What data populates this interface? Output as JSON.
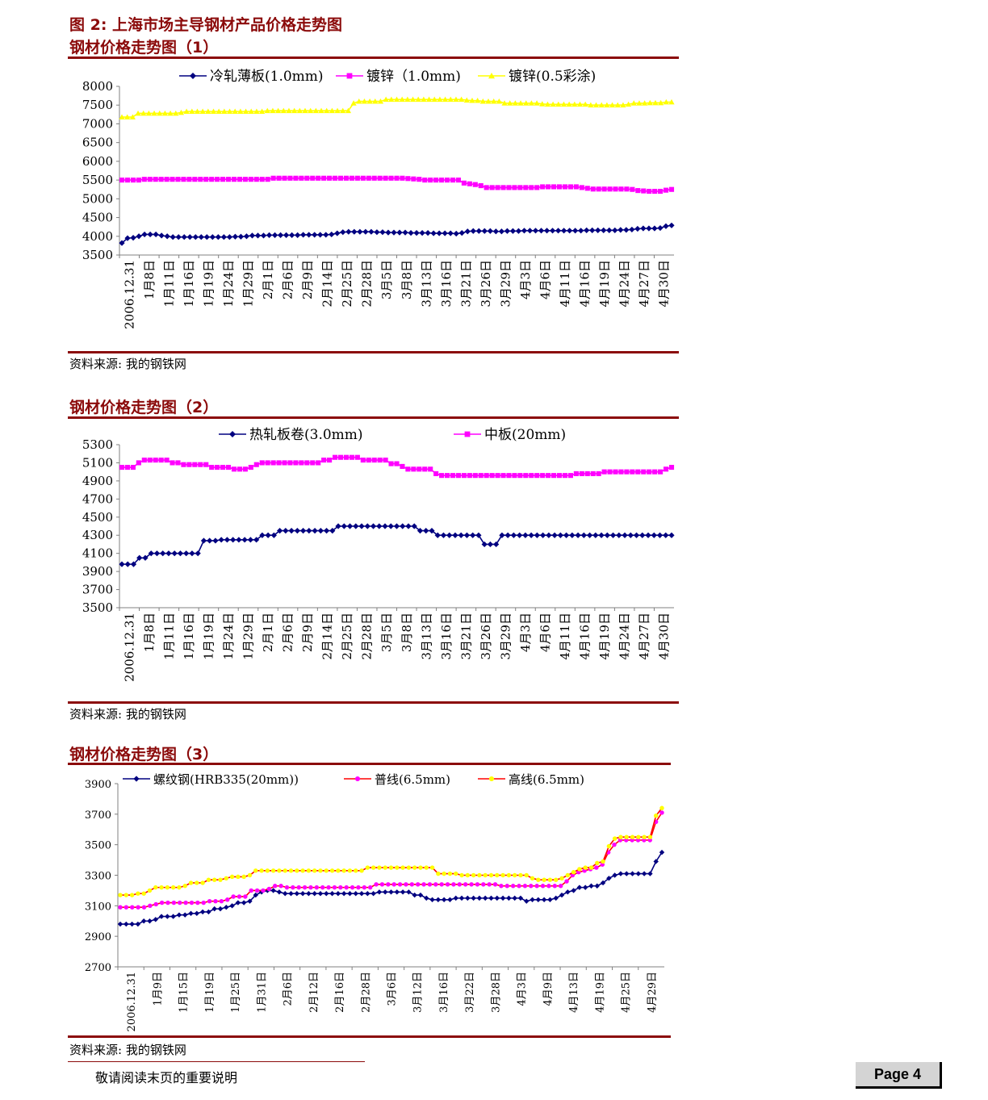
{
  "header": {
    "figure_title": "图 2: 上海市场主导钢材产品价格走势图",
    "chart1_title": "钢材价格走势图（1）",
    "chart2_title": "钢材价格走势图（2）",
    "chart3_title": "钢材价格走势图（3）"
  },
  "sources": {
    "s1": "资料来源: 我的钢铁网",
    "s2": "资料来源: 我的钢铁网",
    "s3": "资料来源: 我的钢铁网"
  },
  "footer": {
    "note": "敬请阅读末页的重要说明",
    "page": "Page 4"
  },
  "colors": {
    "navy": "#000080",
    "magenta": "#ff00ff",
    "yellow": "#ffff00",
    "red": "#ff0000",
    "rule": "#8b0a0a"
  },
  "chart_data": [
    {
      "type": "line",
      "ylim": [
        3500,
        8000
      ],
      "yticks": [
        3500,
        4000,
        4500,
        5000,
        5500,
        6000,
        6500,
        7000,
        7500,
        8000
      ],
      "xtick_labels": [
        "2006.12.31",
        "1月8日",
        "1月11日",
        "1月16日",
        "1月19日",
        "1月24日",
        "1月29日",
        "2月1日",
        "2月6日",
        "2月9日",
        "2月14日",
        "2月25日",
        "2月28日",
        "3月5日",
        "3月8日",
        "3月13日",
        "3月16日",
        "3月21日",
        "3月26日",
        "3月29日",
        "4月3日",
        "4月6日",
        "4月11日",
        "4月16日",
        "4月19日",
        "4月24日",
        "4月27日",
        "4月30日"
      ],
      "legend_position": "top",
      "series": [
        {
          "name": "冷轧薄板(1.0mm)",
          "marker": "diamond",
          "color": "#000080",
          "values": [
            3820,
            3950,
            3960,
            4000,
            4050,
            4050,
            4050,
            4020,
            4000,
            3980,
            3980,
            3980,
            3980,
            3980,
            3980,
            3980,
            3980,
            3980,
            3980,
            3980,
            3990,
            3990,
            4000,
            4020,
            4020,
            4020,
            4030,
            4030,
            4030,
            4030,
            4030,
            4030,
            4040,
            4040,
            4040,
            4040,
            4040,
            4050,
            4080,
            4110,
            4120,
            4120,
            4120,
            4120,
            4120,
            4110,
            4110,
            4100,
            4100,
            4100,
            4100,
            4090,
            4090,
            4090,
            4090,
            4080,
            4080,
            4080,
            4080,
            4070,
            4090,
            4130,
            4140,
            4140,
            4140,
            4140,
            4130,
            4130,
            4140,
            4140,
            4140,
            4150,
            4150,
            4150,
            4150,
            4150,
            4150,
            4150,
            4150,
            4150,
            4150,
            4150,
            4160,
            4160,
            4160,
            4160,
            4160,
            4160,
            4170,
            4170,
            4180,
            4200,
            4210,
            4210,
            4210,
            4220,
            4270,
            4290
          ]
        },
        {
          "name": "镀锌（1.0mm)",
          "marker": "square",
          "color": "#ff00ff",
          "values": [
            5500,
            5500,
            5500,
            5500,
            5520,
            5520,
            5520,
            5520,
            5520,
            5520,
            5520,
            5520,
            5520,
            5520,
            5520,
            5520,
            5520,
            5520,
            5520,
            5520,
            5520,
            5520,
            5520,
            5520,
            5520,
            5520,
            5520,
            5550,
            5550,
            5550,
            5550,
            5550,
            5550,
            5550,
            5550,
            5550,
            5550,
            5550,
            5550,
            5550,
            5550,
            5550,
            5550,
            5550,
            5550,
            5550,
            5550,
            5550,
            5550,
            5550,
            5550,
            5540,
            5530,
            5520,
            5500,
            5500,
            5500,
            5500,
            5500,
            5500,
            5500,
            5420,
            5400,
            5380,
            5350,
            5300,
            5300,
            5300,
            5300,
            5300,
            5300,
            5300,
            5300,
            5300,
            5300,
            5320,
            5320,
            5320,
            5320,
            5320,
            5320,
            5320,
            5300,
            5280,
            5260,
            5260,
            5260,
            5260,
            5260,
            5260,
            5260,
            5250,
            5220,
            5210,
            5200,
            5200,
            5200,
            5230,
            5250
          ]
        },
        {
          "name": "镀锌(0.5彩涂)",
          "marker": "triangle",
          "color": "#ffff00",
          "values": [
            7180,
            7180,
            7180,
            7280,
            7280,
            7280,
            7280,
            7280,
            7280,
            7280,
            7280,
            7300,
            7330,
            7330,
            7330,
            7330,
            7330,
            7330,
            7330,
            7330,
            7330,
            7330,
            7330,
            7330,
            7330,
            7330,
            7330,
            7350,
            7350,
            7350,
            7350,
            7350,
            7350,
            7350,
            7350,
            7350,
            7350,
            7350,
            7350,
            7350,
            7350,
            7350,
            7350,
            7550,
            7600,
            7600,
            7600,
            7600,
            7600,
            7650,
            7650,
            7650,
            7650,
            7650,
            7650,
            7650,
            7650,
            7650,
            7650,
            7650,
            7650,
            7650,
            7650,
            7650,
            7630,
            7620,
            7620,
            7600,
            7600,
            7600,
            7600,
            7550,
            7550,
            7550,
            7550,
            7550,
            7550,
            7550,
            7530,
            7520,
            7520,
            7520,
            7520,
            7520,
            7520,
            7520,
            7520,
            7500,
            7500,
            7500,
            7500,
            7500,
            7500,
            7500,
            7520,
            7550,
            7550,
            7550,
            7560,
            7560,
            7560,
            7580,
            7580
          ]
        }
      ]
    },
    {
      "type": "line",
      "ylim": [
        3500,
        5300
      ],
      "yticks": [
        3500,
        3700,
        3900,
        4100,
        4300,
        4500,
        4700,
        4900,
        5100,
        5300
      ],
      "xtick_labels": [
        "2006.12.31",
        "1月8日",
        "1月11日",
        "1月16日",
        "1月19日",
        "1月24日",
        "1月29日",
        "2月1日",
        "2月6日",
        "2月9日",
        "2月14日",
        "2月25日",
        "2月28日",
        "3月5日",
        "3月8日",
        "3月13日",
        "3月16日",
        "3月21日",
        "3月26日",
        "3月29日",
        "4月3日",
        "4月6日",
        "4月11日",
        "4月16日",
        "4月19日",
        "4月24日",
        "4月27日",
        "4月30日"
      ],
      "legend_position": "top",
      "series": [
        {
          "name": "热轧板卷(3.0mm)",
          "marker": "diamond",
          "color": "#000080",
          "values": [
            3980,
            3980,
            3980,
            4050,
            4050,
            4100,
            4100,
            4100,
            4100,
            4100,
            4100,
            4100,
            4100,
            4100,
            4240,
            4240,
            4240,
            4250,
            4250,
            4250,
            4250,
            4250,
            4250,
            4250,
            4300,
            4300,
            4300,
            4350,
            4350,
            4350,
            4350,
            4350,
            4350,
            4350,
            4350,
            4350,
            4350,
            4400,
            4400,
            4400,
            4400,
            4400,
            4400,
            4400,
            4400,
            4400,
            4400,
            4400,
            4400,
            4400,
            4400,
            4350,
            4350,
            4350,
            4300,
            4300,
            4300,
            4300,
            4300,
            4300,
            4300,
            4300,
            4200,
            4200,
            4200,
            4300,
            4300,
            4300,
            4300,
            4300,
            4300,
            4300,
            4300,
            4300,
            4300,
            4300,
            4300,
            4300,
            4300,
            4300,
            4300,
            4300,
            4300,
            4300,
            4300,
            4300,
            4300,
            4300,
            4300,
            4300,
            4300,
            4300,
            4300,
            4300,
            4300
          ]
        },
        {
          "name": "中板(20mm)",
          "marker": "square",
          "color": "#ff00ff",
          "values": [
            5050,
            5050,
            5050,
            5100,
            5130,
            5130,
            5130,
            5130,
            5130,
            5100,
            5100,
            5080,
            5080,
            5080,
            5080,
            5080,
            5050,
            5050,
            5050,
            5050,
            5030,
            5030,
            5030,
            5050,
            5080,
            5100,
            5100,
            5100,
            5100,
            5100,
            5100,
            5100,
            5100,
            5100,
            5100,
            5100,
            5130,
            5130,
            5160,
            5160,
            5160,
            5160,
            5160,
            5130,
            5130,
            5130,
            5130,
            5130,
            5090,
            5090,
            5060,
            5030,
            5030,
            5030,
            5030,
            5030,
            4980,
            4960,
            4960,
            4960,
            4960,
            4960,
            4960,
            4960,
            4960,
            4960,
            4960,
            4960,
            4960,
            4960,
            4960,
            4960,
            4960,
            4960,
            4960,
            4960,
            4960,
            4960,
            4960,
            4960,
            4960,
            4980,
            4980,
            4980,
            4980,
            4980,
            5000,
            5000,
            5000,
            5000,
            5000,
            5000,
            5000,
            5000,
            5000,
            5000,
            5000,
            5030,
            5050
          ]
        }
      ]
    },
    {
      "type": "line",
      "ylim": [
        2700,
        3900
      ],
      "yticks": [
        2700,
        2900,
        3100,
        3300,
        3500,
        3700,
        3900
      ],
      "xtick_labels": [
        "2006.12.31",
        "1月9日",
        "1月15日",
        "1月19日",
        "1月25日",
        "1月31日",
        "2月6日",
        "2月12日",
        "2月16日",
        "2月28日",
        "3月6日",
        "3月12日",
        "3月16日",
        "3月22日",
        "3月28日",
        "4月3日",
        "4月9日",
        "4月13日",
        "4月19日",
        "4月25日",
        "4月29日"
      ],
      "legend_position": "top",
      "series": [
        {
          "name": "螺纹钢(HRB335(20mm))",
          "marker": "diamond",
          "color": "#000080",
          "values": [
            2980,
            2980,
            2980,
            2980,
            3000,
            3000,
            3010,
            3030,
            3030,
            3030,
            3040,
            3040,
            3050,
            3050,
            3060,
            3060,
            3080,
            3080,
            3090,
            3100,
            3120,
            3120,
            3130,
            3170,
            3190,
            3200,
            3200,
            3190,
            3180,
            3180,
            3180,
            3180,
            3180,
            3180,
            3180,
            3180,
            3180,
            3180,
            3180,
            3180,
            3180,
            3180,
            3180,
            3180,
            3190,
            3190,
            3190,
            3190,
            3190,
            3190,
            3170,
            3170,
            3150,
            3140,
            3140,
            3140,
            3140,
            3150,
            3150,
            3150,
            3150,
            3150,
            3150,
            3150,
            3150,
            3150,
            3150,
            3150,
            3150,
            3130,
            3140,
            3140,
            3140,
            3140,
            3150,
            3170,
            3190,
            3200,
            3220,
            3220,
            3230,
            3230,
            3250,
            3280,
            3300,
            3310,
            3310,
            3310,
            3310,
            3310,
            3310,
            3390,
            3450
          ]
        },
        {
          "name": "普线(6.5mm)",
          "marker": "circle",
          "color": "#ff00ff",
          "line_color": "#ff0000",
          "values": [
            3090,
            3090,
            3090,
            3090,
            3090,
            3100,
            3110,
            3120,
            3120,
            3120,
            3120,
            3120,
            3120,
            3120,
            3120,
            3130,
            3130,
            3130,
            3140,
            3160,
            3160,
            3160,
            3200,
            3200,
            3200,
            3210,
            3230,
            3230,
            3220,
            3220,
            3220,
            3220,
            3220,
            3220,
            3220,
            3220,
            3220,
            3220,
            3220,
            3220,
            3220,
            3220,
            3220,
            3240,
            3240,
            3240,
            3240,
            3240,
            3240,
            3240,
            3240,
            3240,
            3240,
            3240,
            3240,
            3240,
            3240,
            3240,
            3240,
            3240,
            3240,
            3240,
            3240,
            3240,
            3230,
            3230,
            3230,
            3230,
            3230,
            3230,
            3230,
            3230,
            3230,
            3230,
            3230,
            3260,
            3300,
            3320,
            3330,
            3340,
            3350,
            3370,
            3450,
            3500,
            3530,
            3530,
            3530,
            3530,
            3530,
            3530,
            3650,
            3710
          ]
        },
        {
          "name": "高线(6.5mm)",
          "marker": "circle",
          "color": "#ffff00",
          "line_color": "#ff0000",
          "values": [
            3170,
            3170,
            3170,
            3180,
            3180,
            3200,
            3220,
            3220,
            3220,
            3220,
            3220,
            3230,
            3250,
            3250,
            3250,
            3270,
            3270,
            3270,
            3280,
            3290,
            3290,
            3290,
            3300,
            3330,
            3330,
            3330,
            3330,
            3330,
            3330,
            3330,
            3330,
            3330,
            3330,
            3330,
            3330,
            3330,
            3330,
            3330,
            3330,
            3330,
            3330,
            3330,
            3350,
            3350,
            3350,
            3350,
            3350,
            3350,
            3350,
            3350,
            3350,
            3350,
            3350,
            3350,
            3310,
            3310,
            3310,
            3310,
            3300,
            3300,
            3300,
            3300,
            3300,
            3300,
            3300,
            3300,
            3300,
            3300,
            3300,
            3300,
            3280,
            3270,
            3270,
            3270,
            3270,
            3280,
            3300,
            3320,
            3340,
            3350,
            3350,
            3380,
            3390,
            3490,
            3540,
            3550,
            3550,
            3550,
            3550,
            3550,
            3550,
            3690,
            3740
          ]
        }
      ]
    }
  ]
}
